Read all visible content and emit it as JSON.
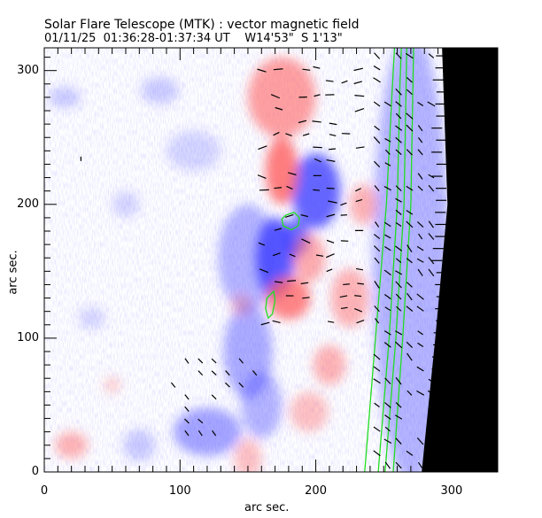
{
  "header": {
    "title": "Solar Flare Telescope (MTK) : vector magnetic field",
    "date": "01/11/25",
    "time_range": "01:36:28-01:37:34 UT",
    "position_w": "W14'53\"",
    "position_s": "S 1'13\""
  },
  "colors": {
    "positive": "#ff6060",
    "negative": "#4040ff",
    "contour": "#22dd22",
    "vector": "#000000",
    "offlimb": "#000000"
  },
  "chart_data": {
    "type": "heatmap",
    "title": "Solar Flare Telescope (MTK) : vector magnetic field",
    "xlabel": "arc sec.",
    "ylabel": "arc sec.",
    "xlim": [
      0,
      334
    ],
    "ylim": [
      0,
      317
    ],
    "xticks": [
      0,
      100,
      200,
      300
    ],
    "yticks": [
      0,
      100,
      200,
      300
    ],
    "xtick_labels": [
      "0",
      "100",
      "200",
      "300"
    ],
    "ytick_labels": [
      "0",
      "100",
      "200",
      "300"
    ],
    "x_minor_step": 10,
    "y_minor_step": 10,
    "polarity_regions": [
      {
        "polarity": "negative",
        "x": 170,
        "y": 160,
        "rx": 14,
        "ry": 30,
        "strength": 1.0
      },
      {
        "polarity": "negative",
        "x": 200,
        "y": 210,
        "rx": 18,
        "ry": 28,
        "strength": 0.95
      },
      {
        "polarity": "negative",
        "x": 185,
        "y": 175,
        "rx": 10,
        "ry": 14,
        "strength": 0.9
      },
      {
        "polarity": "negative",
        "x": 150,
        "y": 160,
        "rx": 22,
        "ry": 40,
        "strength": 0.45
      },
      {
        "polarity": "negative",
        "x": 150,
        "y": 90,
        "rx": 18,
        "ry": 35,
        "strength": 0.5
      },
      {
        "polarity": "negative",
        "x": 120,
        "y": 30,
        "rx": 25,
        "ry": 18,
        "strength": 0.55
      },
      {
        "polarity": "negative",
        "x": 160,
        "y": 50,
        "rx": 15,
        "ry": 25,
        "strength": 0.45
      },
      {
        "polarity": "negative",
        "x": 70,
        "y": 20,
        "rx": 12,
        "ry": 12,
        "strength": 0.3
      },
      {
        "polarity": "negative",
        "x": 110,
        "y": 240,
        "rx": 20,
        "ry": 15,
        "strength": 0.25
      },
      {
        "polarity": "negative",
        "x": 85,
        "y": 285,
        "rx": 14,
        "ry": 10,
        "strength": 0.3
      },
      {
        "polarity": "negative",
        "x": 60,
        "y": 200,
        "rx": 10,
        "ry": 10,
        "strength": 0.25
      },
      {
        "polarity": "negative",
        "x": 15,
        "y": 280,
        "rx": 12,
        "ry": 8,
        "strength": 0.3
      },
      {
        "polarity": "negative",
        "x": 35,
        "y": 115,
        "rx": 10,
        "ry": 8,
        "strength": 0.25
      },
      {
        "polarity": "negative",
        "x": 270,
        "y": 160,
        "rx": 28,
        "ry": 170,
        "strength": 0.45
      },
      {
        "polarity": "positive",
        "x": 175,
        "y": 225,
        "rx": 12,
        "ry": 25,
        "strength": 0.95
      },
      {
        "polarity": "positive",
        "x": 175,
        "y": 280,
        "rx": 25,
        "ry": 30,
        "strength": 0.7
      },
      {
        "polarity": "positive",
        "x": 180,
        "y": 130,
        "rx": 16,
        "ry": 16,
        "strength": 0.9
      },
      {
        "polarity": "positive",
        "x": 195,
        "y": 160,
        "rx": 12,
        "ry": 18,
        "strength": 0.6
      },
      {
        "polarity": "positive",
        "x": 225,
        "y": 130,
        "rx": 14,
        "ry": 22,
        "strength": 0.55
      },
      {
        "polarity": "positive",
        "x": 210,
        "y": 80,
        "rx": 12,
        "ry": 15,
        "strength": 0.55
      },
      {
        "polarity": "positive",
        "x": 195,
        "y": 45,
        "rx": 14,
        "ry": 15,
        "strength": 0.45
      },
      {
        "polarity": "positive",
        "x": 150,
        "y": 10,
        "rx": 10,
        "ry": 15,
        "strength": 0.45
      },
      {
        "polarity": "positive",
        "x": 235,
        "y": 200,
        "rx": 10,
        "ry": 15,
        "strength": 0.55
      },
      {
        "polarity": "positive",
        "x": 20,
        "y": 20,
        "rx": 12,
        "ry": 10,
        "strength": 0.55
      },
      {
        "polarity": "positive",
        "x": 50,
        "y": 65,
        "rx": 6,
        "ry": 6,
        "strength": 0.35
      },
      {
        "polarity": "positive",
        "x": 145,
        "y": 125,
        "rx": 8,
        "ry": 8,
        "strength": 0.35
      }
    ],
    "limb_x_at_y": [
      [
        0,
        278
      ],
      [
        100,
        288
      ],
      [
        200,
        297
      ],
      [
        317,
        293
      ]
    ],
    "contours": [
      {
        "points": [
          [
            178,
            192
          ],
          [
            184,
            194
          ],
          [
            188,
            190
          ],
          [
            187,
            184
          ],
          [
            182,
            181
          ],
          [
            176,
            184
          ],
          [
            175,
            189
          ],
          [
            178,
            192
          ]
        ]
      },
      {
        "points": [
          [
            166,
            132
          ],
          [
            169,
            135
          ],
          [
            170,
            128
          ],
          [
            168,
            118
          ],
          [
            165,
            115
          ],
          [
            163,
            122
          ],
          [
            164,
            130
          ],
          [
            166,
            132
          ]
        ]
      },
      {
        "points": [
          [
            236,
            0
          ],
          [
            244,
            100
          ],
          [
            252,
            200
          ],
          [
            256,
            280
          ],
          [
            258,
            317
          ]
        ]
      },
      {
        "points": [
          [
            246,
            0
          ],
          [
            254,
            100
          ],
          [
            260,
            200
          ],
          [
            262,
            290
          ],
          [
            263,
            317
          ]
        ]
      },
      {
        "points": [
          [
            251,
            0
          ],
          [
            259,
            100
          ],
          [
            265,
            200
          ],
          [
            267,
            317
          ]
        ]
      },
      {
        "points": [
          [
            257,
            0
          ],
          [
            264,
            100
          ],
          [
            270,
            200
          ],
          [
            272,
            317
          ]
        ]
      }
    ],
    "vectors_note": "transverse field vectors drawn as short line segments"
  }
}
